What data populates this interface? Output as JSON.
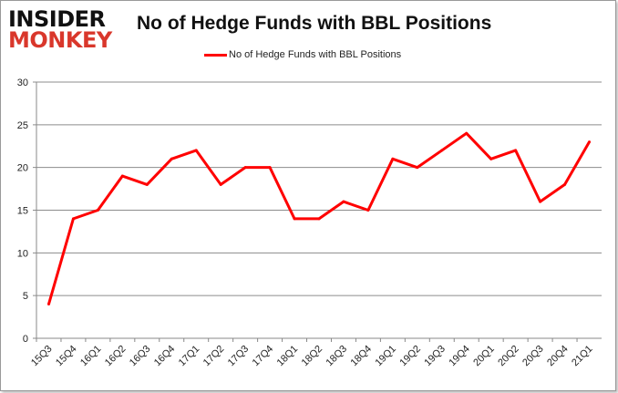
{
  "logo": {
    "line1": "INSIDER",
    "line2": "MONKEY"
  },
  "chart_data": {
    "type": "line",
    "title": "No of Hedge Funds with BBL Positions",
    "xlabel": "",
    "ylabel": "",
    "ylim": [
      0,
      30
    ],
    "yticks": [
      0,
      5,
      10,
      15,
      20,
      25,
      30
    ],
    "grid": true,
    "legend_position": "top",
    "categories": [
      "15Q3",
      "15Q4",
      "16Q1",
      "16Q2",
      "16Q3",
      "16Q4",
      "17Q1",
      "17Q2",
      "17Q3",
      "17Q4",
      "18Q1",
      "18Q2",
      "18Q3",
      "18Q4",
      "19Q1",
      "19Q2",
      "19Q3",
      "19Q4",
      "20Q1",
      "20Q2",
      "20Q3",
      "20Q4",
      "21Q1"
    ],
    "series": [
      {
        "name": "No of Hedge Funds with BBL Positions",
        "color": "#ff0000",
        "values": [
          4,
          14,
          15,
          19,
          18,
          21,
          22,
          18,
          20,
          20,
          14,
          14,
          16,
          15,
          21,
          20,
          22,
          24,
          21,
          22,
          16,
          18,
          23
        ]
      }
    ]
  }
}
